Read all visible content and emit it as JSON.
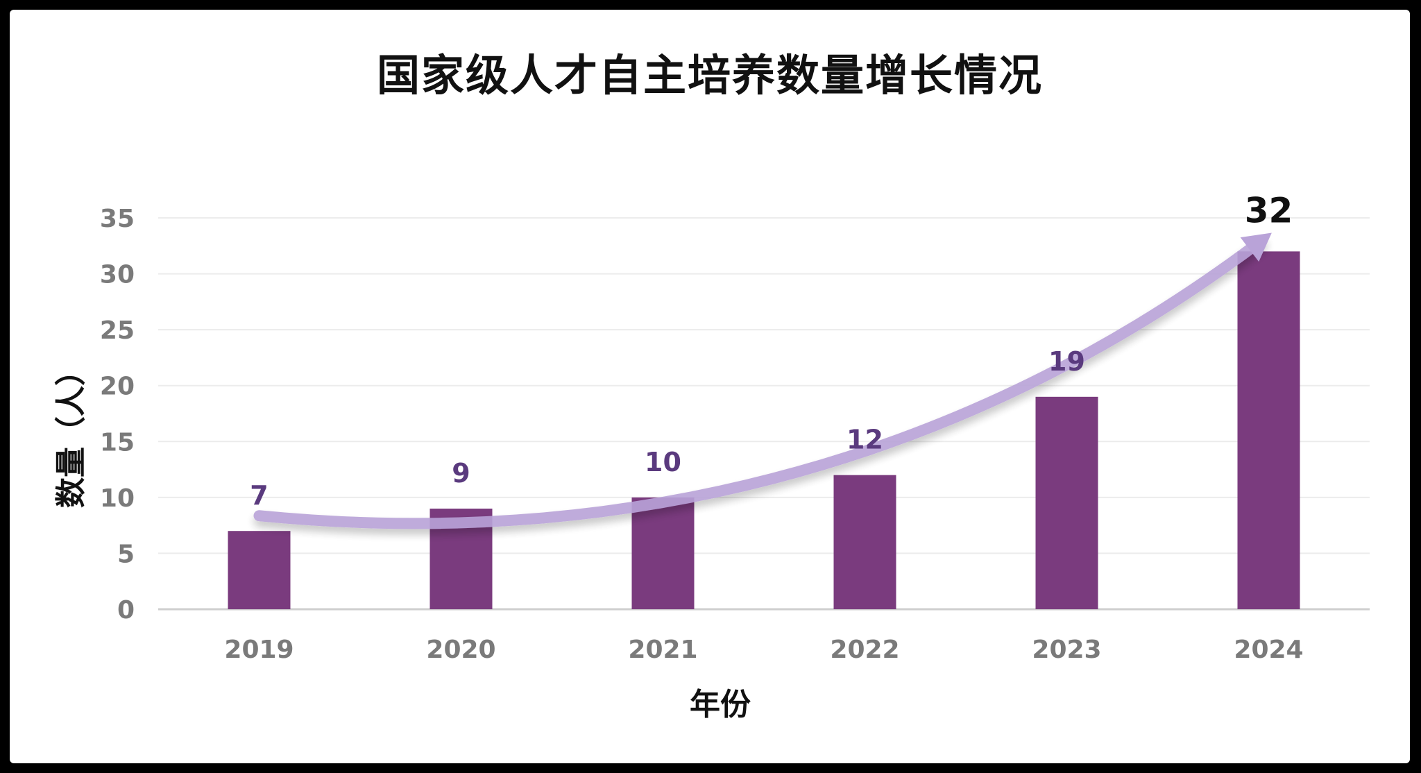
{
  "chart_data": {
    "type": "bar",
    "title": "国家级人才自主培养数量增长情况",
    "xlabel": "年份",
    "ylabel": "数量（人）",
    "categories": [
      "2019",
      "2020",
      "2021",
      "2022",
      "2023",
      "2024"
    ],
    "values": [
      7,
      9,
      10,
      12,
      19,
      32
    ],
    "data_labels": [
      "7",
      "9",
      "10",
      "12",
      "19",
      "32"
    ],
    "ylim": [
      0,
      35
    ],
    "yticks": [
      0,
      5,
      10,
      15,
      20,
      25,
      30,
      35
    ],
    "grid": true,
    "legend": "none",
    "trend_arrow": true,
    "colors": {
      "bar": "#7a3b7e",
      "trend": "#b9a3d8",
      "label": "#5a3a7e",
      "grid": "#ececec"
    }
  }
}
